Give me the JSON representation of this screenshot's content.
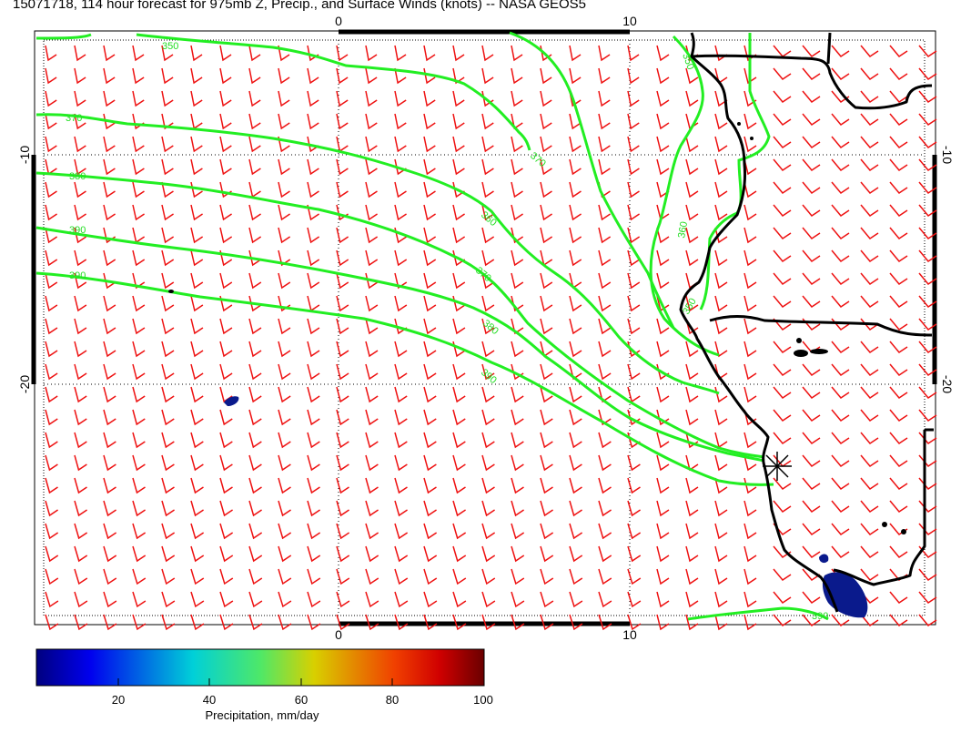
{
  "title": "15071718, 114 hour forecast for 975mb Z, Precip., and Surface Winds (knots) -- NASA GEOS5",
  "axes": {
    "lon_ticks": [
      "0",
      "10"
    ],
    "lat_ticks": [
      "-10",
      "-20"
    ]
  },
  "contours": {
    "labels": [
      "350",
      "370",
      "380",
      "390",
      "360",
      "370",
      "380",
      "390",
      "370",
      "360",
      "350",
      "350",
      "390"
    ],
    "color": "#22ee22"
  },
  "colorbar": {
    "tick_labels": [
      "20",
      "40",
      "60",
      "80",
      "100"
    ],
    "label": "Precipitation, mm/day"
  },
  "colors": {
    "wind_barbs": "#ee1111",
    "coastline": "#000000",
    "contour": "#22ee22",
    "precip_low": "#0a1a8c"
  }
}
